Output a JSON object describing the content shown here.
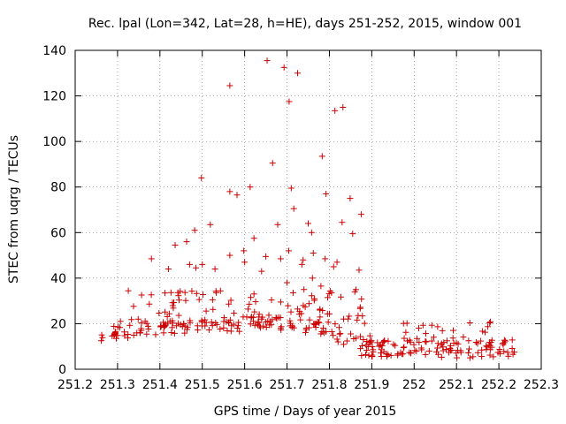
{
  "chart_data": {
    "type": "scatter",
    "title": "Rec. lpal (Lon=342, Lat=28, h=HE), days 251-252, 2015, window 001",
    "xlabel": "GPS time / Days of year 2015",
    "ylabel": "STEC from uqrg / TECUs",
    "xlim": [
      251.2,
      252.3
    ],
    "ylim": [
      0,
      140
    ],
    "xticks": [
      "251.2",
      "251.3",
      "251.4",
      "251.5",
      "251.6",
      "251.7",
      "251.8",
      "251.9",
      "252",
      "252.1",
      "252.2",
      "252.3"
    ],
    "yticks": [
      "0",
      "20",
      "40",
      "60",
      "80",
      "100",
      "120",
      "140"
    ],
    "grid": true,
    "marker": "plus",
    "color": "#cc0000",
    "series": [
      {
        "x": [
          251.565,
          251.653,
          251.693,
          251.725,
          251.705,
          251.813,
          251.832,
          251.498,
          251.666,
          251.783,
          251.792,
          251.613,
          251.582,
          251.565,
          251.678,
          251.716,
          251.75,
          251.83,
          251.849,
          251.875,
          251.71,
          251.758,
          251.622,
          251.685,
          251.704,
          251.738,
          251.762,
          251.79,
          251.818,
          251.855,
          251.436,
          251.463,
          251.482,
          251.519,
          251.565,
          251.598,
          251.65,
          251.735,
          251.76,
          251.81,
          251.87,
          251.38,
          251.42,
          251.47,
          251.485,
          251.5,
          251.53,
          251.6,
          251.64,
          251.7,
          251.74,
          251.78,
          251.86
        ],
        "y": [
          124.5,
          135.5,
          132.5,
          130,
          117.5,
          113.5,
          115,
          84,
          90.5,
          93.5,
          77,
          80,
          76.5,
          78,
          63.5,
          70.5,
          64,
          64.5,
          75,
          68,
          79.5,
          60,
          57.5,
          48.5,
          52,
          48,
          51,
          48.5,
          47,
          59.5,
          54.5,
          56,
          61,
          63.5,
          50,
          52,
          49.5,
          46,
          40,
          45,
          43.5,
          48.5,
          44,
          46,
          44.5,
          46,
          44,
          47,
          43,
          38,
          35,
          36.5,
          34
        ]
      }
    ]
  }
}
